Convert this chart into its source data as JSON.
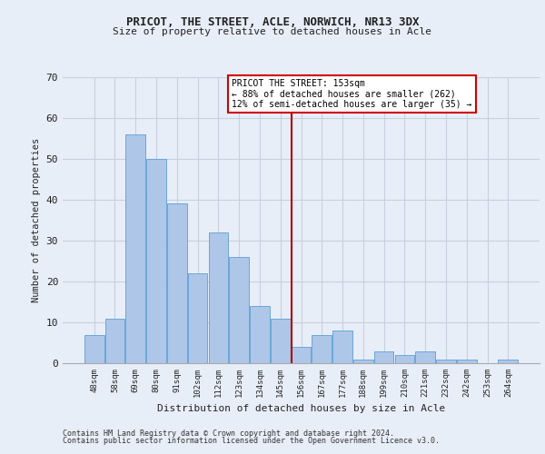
{
  "title1": "PRICOT, THE STREET, ACLE, NORWICH, NR13 3DX",
  "title2": "Size of property relative to detached houses in Acle",
  "xlabel": "Distribution of detached houses by size in Acle",
  "ylabel": "Number of detached properties",
  "categories": [
    "48sqm",
    "58sqm",
    "69sqm",
    "80sqm",
    "91sqm",
    "102sqm",
    "112sqm",
    "123sqm",
    "134sqm",
    "145sqm",
    "156sqm",
    "167sqm",
    "177sqm",
    "188sqm",
    "199sqm",
    "210sqm",
    "221sqm",
    "232sqm",
    "242sqm",
    "253sqm",
    "264sqm"
  ],
  "values": [
    7,
    11,
    56,
    50,
    39,
    22,
    32,
    26,
    14,
    11,
    4,
    7,
    8,
    1,
    3,
    2,
    3,
    1,
    1,
    0,
    1
  ],
  "bar_color": "#aec6e8",
  "bar_edge_color": "#5a9fd4",
  "grid_color": "#c8d0de",
  "background_color": "#e8eef8",
  "vline_x": 9.53,
  "vline_color": "#aa0000",
  "annotation_box_text": "PRICOT THE STREET: 153sqm\n← 88% of detached houses are smaller (262)\n12% of semi-detached houses are larger (35) →",
  "ylim": [
    0,
    70
  ],
  "yticks": [
    0,
    10,
    20,
    30,
    40,
    50,
    60,
    70
  ],
  "footer1": "Contains HM Land Registry data © Crown copyright and database right 2024.",
  "footer2": "Contains public sector information licensed under the Open Government Licence v3.0."
}
